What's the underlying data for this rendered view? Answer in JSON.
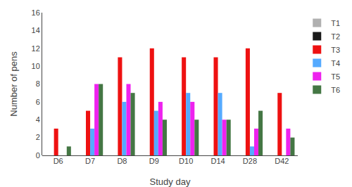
{
  "chart_data": {
    "type": "bar",
    "xlabel": "Study day",
    "ylabel": "Number of pens",
    "categories": [
      "D6",
      "D7",
      "D8",
      "D9",
      "D10",
      "D14",
      "D28",
      "D42"
    ],
    "series": [
      {
        "name": "T1",
        "color": "#b0b0b0",
        "values": [
          0,
          0,
          0,
          0,
          0,
          0,
          0,
          0
        ]
      },
      {
        "name": "T2",
        "color": "#1a1a1a",
        "values": [
          0,
          0,
          0,
          0,
          0,
          0,
          0,
          0
        ]
      },
      {
        "name": "T3",
        "color": "#ee1111",
        "values": [
          3,
          5,
          11,
          12,
          11,
          11,
          12,
          7
        ]
      },
      {
        "name": "T4",
        "color": "#55aaff",
        "values": [
          0,
          3,
          6,
          5,
          7,
          7,
          1,
          0
        ]
      },
      {
        "name": "T5",
        "color": "#ee22ee",
        "values": [
          0,
          8,
          8,
          6,
          6,
          4,
          3,
          3
        ]
      },
      {
        "name": "T6",
        "color": "#447744",
        "values": [
          1,
          8,
          7,
          4,
          4,
          4,
          5,
          2
        ]
      }
    ],
    "ylim": [
      0,
      16
    ],
    "yticks": [
      0,
      2,
      4,
      6,
      8,
      10,
      12,
      14,
      16
    ],
    "grid": false,
    "legend": "right"
  }
}
